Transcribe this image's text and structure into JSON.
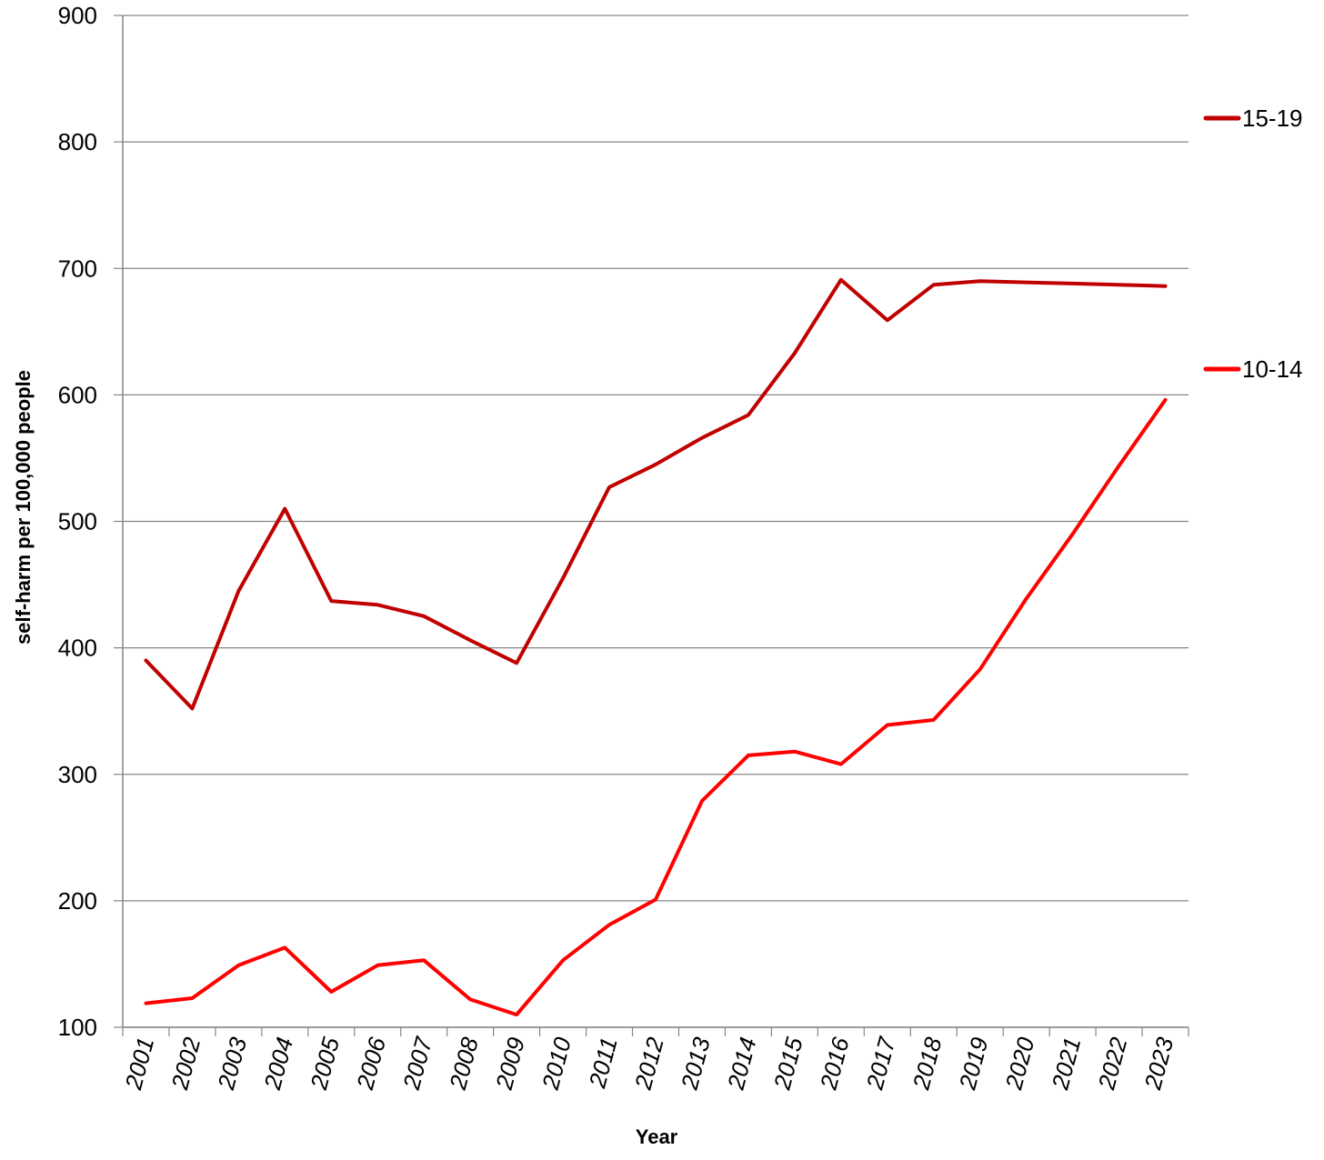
{
  "chart_data": {
    "type": "line",
    "title": "",
    "xlabel": "Year",
    "ylabel": "self-harm per 100,000 people",
    "ylim": [
      100,
      900
    ],
    "yticks": [
      100,
      200,
      300,
      400,
      500,
      600,
      700,
      800,
      900
    ],
    "grid": "horizontal",
    "legend": "right",
    "categories": [
      "2001",
      "2002",
      "2003",
      "2004",
      "2005",
      "2006",
      "2007",
      "2008",
      "2009",
      "2010",
      "2011",
      "2012",
      "2013",
      "2014",
      "2015",
      "2016",
      "2017",
      "2018",
      "2019",
      "2020",
      "2021",
      "2022",
      "2023"
    ],
    "series": [
      {
        "name": "15-19",
        "color": "#c00000",
        "values": [
          390,
          352,
          445,
          510,
          437,
          434,
          425,
          406,
          388,
          455,
          527,
          545,
          566,
          584,
          633,
          691,
          659,
          687,
          690,
          689,
          688,
          687,
          686
        ]
      },
      {
        "name": "10-14",
        "color": "#ff0000",
        "values": [
          119,
          123,
          149,
          163,
          128,
          149,
          153,
          122,
          110,
          153,
          181,
          201,
          279,
          315,
          318,
          308,
          339,
          343,
          383,
          439,
          490,
          544,
          596
        ]
      }
    ]
  }
}
